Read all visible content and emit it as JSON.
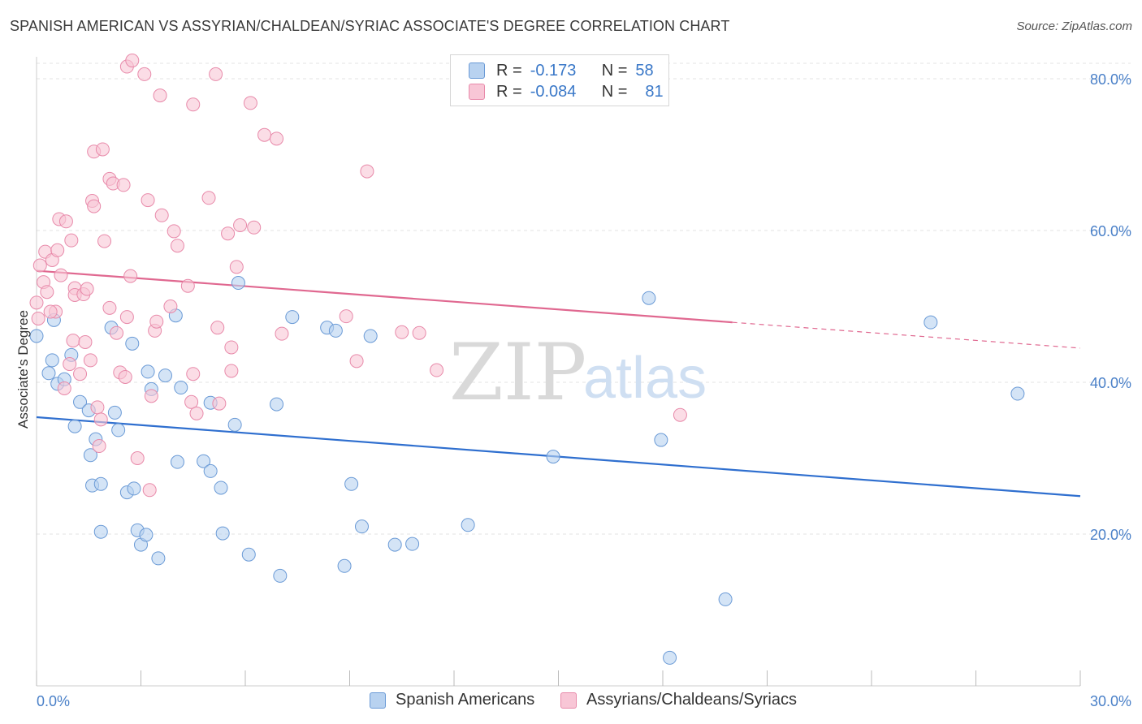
{
  "title": "SPANISH AMERICAN VS ASSYRIAN/CHALDEAN/SYRIAC ASSOCIATE'S DEGREE CORRELATION CHART",
  "source": "Source: ZipAtlas.com",
  "watermark": {
    "zip": "ZIP",
    "atlas": "atlas"
  },
  "legend": {
    "rows": [
      {
        "r_label": "R =",
        "r_value": "-0.173",
        "n_label": "N =",
        "n_value": "58"
      },
      {
        "r_label": "R =",
        "r_value": "-0.084",
        "n_label": "N =",
        "n_value": "81"
      }
    ]
  },
  "colors": {
    "blue_fill": "#b8d2f0",
    "blue_stroke": "#6a9ad6",
    "blue_line": "#2f6fcf",
    "pink_fill": "#f8c6d6",
    "pink_stroke": "#e88aaa",
    "pink_line": "#e06890",
    "tick_text": "#4a80c8",
    "grid": "#e3e3e3"
  },
  "chart_data": {
    "type": "scatter",
    "title": "SPANISH AMERICAN VS ASSYRIAN/CHALDEAN/SYRIAC ASSOCIATE'S DEGREE CORRELATION CHART",
    "xlabel": "",
    "ylabel": "Associate's Degree",
    "xlim": [
      0,
      30
    ],
    "ylim": [
      0,
      83
    ],
    "x_ticks": [
      "0.0%",
      "30.0%"
    ],
    "y_ticks": [
      {
        "value": 80,
        "label": "80.0%"
      },
      {
        "value": 60,
        "label": "60.0%"
      },
      {
        "value": 40,
        "label": "40.0%"
      },
      {
        "value": 20,
        "label": "20.0%"
      }
    ],
    "grid": true,
    "legend_position": "top-center",
    "series": [
      {
        "name": "Spanish Americans",
        "color": "blue",
        "trend": {
          "x": [
            0,
            30
          ],
          "y": [
            35.4,
            25.0
          ],
          "solid_until": 30
        },
        "points": [
          [
            0.0,
            46.1
          ],
          [
            0.5,
            48.2
          ],
          [
            0.35,
            41.2
          ],
          [
            0.45,
            42.9
          ],
          [
            0.6,
            39.8
          ],
          [
            0.8,
            40.4
          ],
          [
            1.0,
            43.6
          ],
          [
            1.1,
            34.2
          ],
          [
            1.25,
            37.4
          ],
          [
            1.5,
            36.3
          ],
          [
            1.6,
            26.4
          ],
          [
            1.7,
            32.5
          ],
          [
            2.15,
            47.2
          ],
          [
            2.25,
            36.0
          ],
          [
            2.35,
            33.7
          ],
          [
            1.55,
            30.4
          ],
          [
            1.85,
            20.3
          ],
          [
            1.85,
            26.6
          ],
          [
            2.6,
            25.5
          ],
          [
            2.8,
            26.0
          ],
          [
            2.9,
            20.5
          ],
          [
            3.0,
            18.6
          ],
          [
            3.15,
            19.9
          ],
          [
            3.2,
            41.4
          ],
          [
            3.3,
            39.1
          ],
          [
            3.5,
            16.8
          ],
          [
            3.7,
            40.9
          ],
          [
            4.0,
            48.8
          ],
          [
            4.05,
            29.5
          ],
          [
            4.15,
            39.3
          ],
          [
            4.8,
            29.6
          ],
          [
            5.0,
            28.3
          ],
          [
            5.3,
            26.1
          ],
          [
            5.35,
            20.1
          ],
          [
            5.7,
            34.4
          ],
          [
            5.8,
            53.1
          ],
          [
            6.1,
            17.3
          ],
          [
            6.9,
            37.1
          ],
          [
            7.0,
            14.5
          ],
          [
            7.35,
            48.6
          ],
          [
            8.35,
            47.2
          ],
          [
            8.6,
            46.8
          ],
          [
            8.85,
            15.8
          ],
          [
            9.05,
            26.6
          ],
          [
            9.35,
            21.0
          ],
          [
            9.6,
            46.1
          ],
          [
            10.3,
            18.6
          ],
          [
            10.8,
            18.7
          ],
          [
            12.4,
            21.2
          ],
          [
            14.85,
            30.2
          ],
          [
            17.6,
            51.1
          ],
          [
            17.95,
            32.4
          ],
          [
            19.8,
            11.4
          ],
          [
            25.7,
            47.9
          ],
          [
            28.2,
            38.5
          ],
          [
            18.2,
            3.7
          ],
          [
            5.0,
            37.3
          ],
          [
            2.75,
            45.1
          ]
        ]
      },
      {
        "name": "Assyrians/Chaldeans/Syriacs",
        "color": "pink",
        "trend": {
          "x": [
            0,
            30
          ],
          "y": [
            54.7,
            44.5
          ],
          "solid_until": 20.0
        },
        "points": [
          [
            0.0,
            50.5
          ],
          [
            0.1,
            55.4
          ],
          [
            0.2,
            53.2
          ],
          [
            0.25,
            57.2
          ],
          [
            0.3,
            51.9
          ],
          [
            0.45,
            56.1
          ],
          [
            0.55,
            49.3
          ],
          [
            0.6,
            57.4
          ],
          [
            0.65,
            61.5
          ],
          [
            0.7,
            54.1
          ],
          [
            0.8,
            39.2
          ],
          [
            0.95,
            42.4
          ],
          [
            0.85,
            61.2
          ],
          [
            1.0,
            58.7
          ],
          [
            1.05,
            45.5
          ],
          [
            1.1,
            52.4
          ],
          [
            1.1,
            51.5
          ],
          [
            1.25,
            41.1
          ],
          [
            1.35,
            51.6
          ],
          [
            1.4,
            45.3
          ],
          [
            1.45,
            52.3
          ],
          [
            1.55,
            42.9
          ],
          [
            1.6,
            63.9
          ],
          [
            1.65,
            63.2
          ],
          [
            1.65,
            70.4
          ],
          [
            1.75,
            36.7
          ],
          [
            1.8,
            31.6
          ],
          [
            1.85,
            35.1
          ],
          [
            1.9,
            70.7
          ],
          [
            1.95,
            58.6
          ],
          [
            2.1,
            49.8
          ],
          [
            2.1,
            66.8
          ],
          [
            2.2,
            66.2
          ],
          [
            2.3,
            46.5
          ],
          [
            2.4,
            41.3
          ],
          [
            2.5,
            66.0
          ],
          [
            2.55,
            40.7
          ],
          [
            2.6,
            48.6
          ],
          [
            2.6,
            81.6
          ],
          [
            2.7,
            54.0
          ],
          [
            2.75,
            82.4
          ],
          [
            2.9,
            30.0
          ],
          [
            3.1,
            80.6
          ],
          [
            3.2,
            64.0
          ],
          [
            3.25,
            25.8
          ],
          [
            3.3,
            38.2
          ],
          [
            3.4,
            46.8
          ],
          [
            3.45,
            48.0
          ],
          [
            3.55,
            77.8
          ],
          [
            3.6,
            62.0
          ],
          [
            3.85,
            50.0
          ],
          [
            3.95,
            59.9
          ],
          [
            4.05,
            58.0
          ],
          [
            4.35,
            52.7
          ],
          [
            4.45,
            37.4
          ],
          [
            4.5,
            41.1
          ],
          [
            4.5,
            76.6
          ],
          [
            4.6,
            35.9
          ],
          [
            4.95,
            64.3
          ],
          [
            5.15,
            80.6
          ],
          [
            5.2,
            47.2
          ],
          [
            5.25,
            37.2
          ],
          [
            5.5,
            59.6
          ],
          [
            5.6,
            44.6
          ],
          [
            5.6,
            41.5
          ],
          [
            5.75,
            55.2
          ],
          [
            5.85,
            60.7
          ],
          [
            6.15,
            76.8
          ],
          [
            6.25,
            60.4
          ],
          [
            6.55,
            72.6
          ],
          [
            6.9,
            72.1
          ],
          [
            7.05,
            46.4
          ],
          [
            8.9,
            48.7
          ],
          [
            9.2,
            42.8
          ],
          [
            9.5,
            67.8
          ],
          [
            10.5,
            46.6
          ],
          [
            11.0,
            46.5
          ],
          [
            11.5,
            41.6
          ],
          [
            0.05,
            48.4
          ],
          [
            18.5,
            35.7
          ],
          [
            0.4,
            49.3
          ]
        ]
      }
    ]
  }
}
